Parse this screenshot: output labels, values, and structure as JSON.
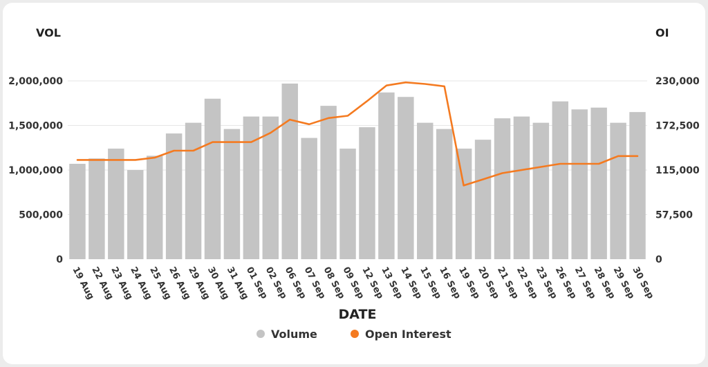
{
  "chart_data": {
    "type": "bar",
    "xlabel": "DATE",
    "ylabel_left": "VOL",
    "ylabel_right": "OI",
    "categories": [
      "19 Aug",
      "22 Aug",
      "23 Aug",
      "24 Aug",
      "25 Aug",
      "26 Aug",
      "29 Aug",
      "30 Aug",
      "31 Aug",
      "01 Sep",
      "02 Sep",
      "06 Sep",
      "07 Sep",
      "08 Sep",
      "09 Sep",
      "12 Sep",
      "13 Sep",
      "14 Sep",
      "15 Sep",
      "16 Sep",
      "19 Sep",
      "20 Sep",
      "21 Sep",
      "22 Sep",
      "23 Sep",
      "26 Sep",
      "27 Sep",
      "28 Sep",
      "29 Sep",
      "30 Sep"
    ],
    "ylim_left": [
      0,
      2000000
    ],
    "ylim_right": [
      0,
      230000
    ],
    "yticks_left": [
      "0",
      "500,000",
      "1,000,000",
      "1,500,000",
      "2,000,000"
    ],
    "yticks_right": [
      "0",
      "57,500",
      "115,000",
      "172,500",
      "230,000"
    ],
    "grid": "horizontal",
    "legend_position": "bottom",
    "series": [
      {
        "name": "Volume",
        "type": "bar",
        "axis": "left",
        "color": "#c4c4c4",
        "values": [
          1070000,
          1130000,
          1240000,
          1000000,
          1160000,
          1410000,
          1530000,
          1800000,
          1460000,
          1600000,
          1600000,
          1970000,
          1360000,
          1720000,
          1240000,
          1480000,
          1870000,
          1820000,
          1530000,
          1460000,
          1240000,
          1340000,
          1580000,
          1600000,
          1530000,
          1770000,
          1680000,
          1700000,
          1530000,
          1650000
        ]
      },
      {
        "name": "Open Interest",
        "type": "line",
        "axis": "right",
        "color": "#f47a20",
        "values": [
          128000,
          128000,
          128000,
          128000,
          131000,
          140000,
          140000,
          151000,
          151000,
          151000,
          163000,
          180000,
          174000,
          182000,
          185000,
          204000,
          224000,
          228000,
          226000,
          223000,
          95000,
          103000,
          111000,
          115000,
          119000,
          123000,
          123000,
          123000,
          133000,
          133000
        ]
      }
    ]
  }
}
